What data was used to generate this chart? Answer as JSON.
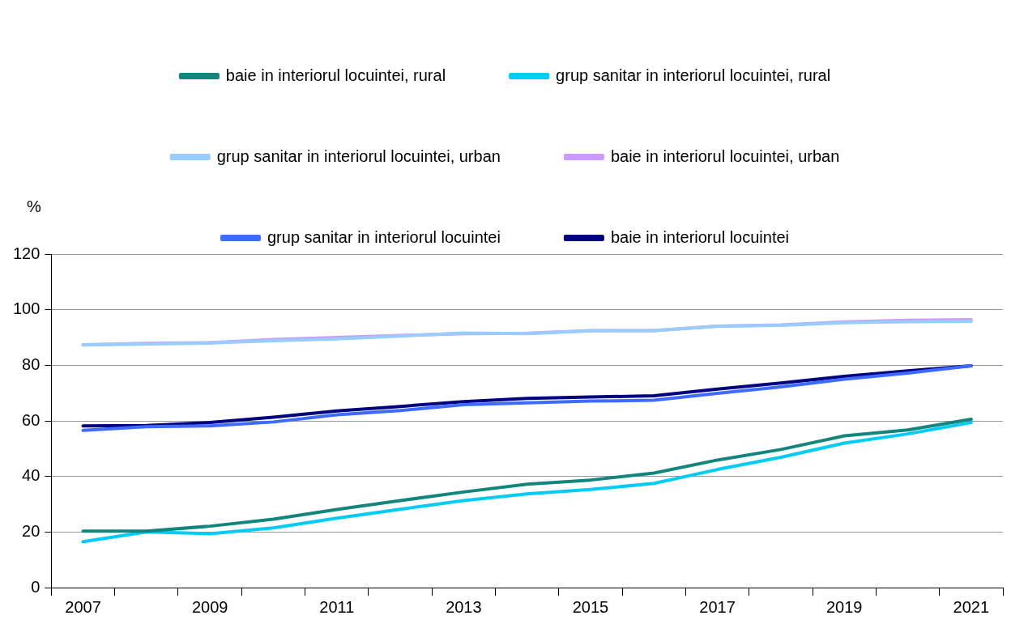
{
  "chart_data": {
    "type": "line",
    "ylabel": "%",
    "categories": [
      "2007",
      null,
      "2009",
      null,
      "2011",
      null,
      "2013",
      null,
      "2015",
      null,
      "2017",
      null,
      "2019",
      null,
      "2021"
    ],
    "ylim": [
      0,
      120
    ],
    "yticks": [
      0,
      20,
      40,
      60,
      80,
      100,
      120
    ],
    "grid": "y",
    "legend": "top",
    "marker": "none",
    "line_style": "solid",
    "series": [
      {
        "name": "baie in interiorul locuintei, rural",
        "color": "#12857d",
        "values": [
          20.3,
          20.3,
          22.1,
          24.6,
          28.1,
          31.3,
          34.4,
          37.2,
          38.7,
          41.2,
          45.9,
          49.7,
          54.6,
          56.7,
          60.6
        ]
      },
      {
        "name": "grup sanitar in interiorul locuintei, rural",
        "color": "#00ccf5",
        "values": [
          16.5,
          20,
          19.4,
          21.5,
          25,
          28.2,
          31.3,
          33.7,
          35.3,
          37.5,
          42.5,
          46.9,
          52,
          55.3,
          59.4
        ]
      },
      {
        "name": "grup sanitar in interiorul locuintei, urban",
        "color": "#99ccff",
        "values": [
          87.3,
          87.7,
          88,
          88.8,
          89.5,
          90.5,
          91.6,
          91.4,
          92.4,
          92.5,
          94.1,
          94.4,
          95.3,
          95.7,
          95.8
        ]
      },
      {
        "name": "baie in interiorul locuintei, urban",
        "color": "#cc99ff",
        "values": [
          87.4,
          87.9,
          88.1,
          89.3,
          90,
          90.7,
          91.4,
          91.5,
          92.5,
          92.5,
          94.1,
          94.5,
          95.6,
          96.2,
          96.4
        ]
      },
      {
        "name": "grup sanitar in interiorul locuintei",
        "color": "#3d6bff",
        "values": [
          56.6,
          57.9,
          58.2,
          59.6,
          62.2,
          63.7,
          65.8,
          66.5,
          67.1,
          67.4,
          69.9,
          72.2,
          75,
          77.2,
          79.8
        ]
      },
      {
        "name": "baie in interiorul locuintei",
        "color": "#000080",
        "values": [
          58.2,
          58.3,
          59.4,
          61.3,
          63.6,
          65.2,
          66.9,
          68.1,
          68.6,
          69,
          71.4,
          73.6,
          76,
          78,
          79.8
        ]
      }
    ]
  }
}
